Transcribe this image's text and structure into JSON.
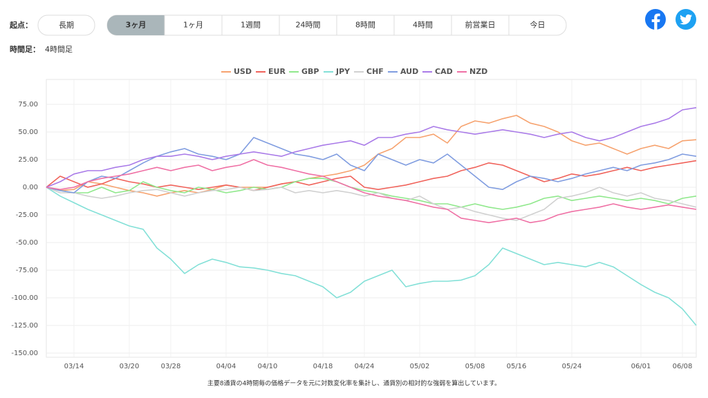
{
  "toolbar": {
    "start_label": "起点：",
    "long_term": "長期",
    "periods": [
      "3ヶ月",
      "1ヶ月",
      "1週間",
      "24時間",
      "8時間",
      "4時間",
      "前営業日",
      "今日"
    ],
    "selected": 0,
    "timeframe_label": "時間足：",
    "timeframe": "4時間足"
  },
  "footer": "主要8通貨の4時間毎の価格データを元に対数変化率を集計し、通貨別の相対的な強弱を算出しています。",
  "chart_data": {
    "type": "line",
    "categories": [
      null,
      null,
      "03/14",
      null,
      null,
      null,
      "03/20",
      null,
      null,
      "03/28",
      null,
      null,
      null,
      "04/04",
      null,
      null,
      "04/10",
      null,
      null,
      null,
      "04/18",
      null,
      null,
      "04/24",
      null,
      null,
      null,
      "05/02",
      null,
      null,
      null,
      "05/08",
      null,
      null,
      "05/16",
      null,
      null,
      null,
      "05/24",
      null,
      null,
      null,
      null,
      "06/01",
      null,
      null,
      "06/08",
      null
    ],
    "series": [
      {
        "name": "USD",
        "color": "#f6a26e",
        "values": [
          0,
          -3,
          -2,
          5,
          3,
          0,
          -3,
          -5,
          -8,
          -5,
          -3,
          -5,
          -2,
          2,
          0,
          0,
          0,
          3,
          5,
          8,
          10,
          12,
          15,
          20,
          30,
          35,
          45,
          45,
          48,
          40,
          55,
          60,
          58,
          62,
          65,
          58,
          55,
          50,
          42,
          38,
          40,
          35,
          30,
          35,
          38,
          35,
          42,
          43
        ]
      },
      {
        "name": "EUR",
        "color": "#f0625a",
        "values": [
          0,
          10,
          5,
          0,
          3,
          8,
          5,
          3,
          0,
          2,
          0,
          -2,
          0,
          2,
          0,
          -3,
          0,
          3,
          5,
          2,
          5,
          8,
          10,
          0,
          -2,
          0,
          2,
          5,
          8,
          10,
          15,
          18,
          22,
          20,
          15,
          10,
          5,
          8,
          12,
          10,
          12,
          15,
          18,
          15,
          18,
          20,
          22,
          24
        ]
      },
      {
        "name": "GBP",
        "color": "#8fe88b",
        "values": [
          0,
          -3,
          -5,
          -5,
          0,
          -5,
          -3,
          5,
          0,
          -3,
          -5,
          0,
          -2,
          -5,
          -3,
          0,
          -2,
          0,
          5,
          8,
          8,
          5,
          0,
          -3,
          -5,
          -8,
          -10,
          -12,
          -15,
          -15,
          -18,
          -15,
          -18,
          -20,
          -18,
          -15,
          -10,
          -8,
          -12,
          -10,
          -8,
          -10,
          -12,
          -10,
          -12,
          -15,
          -10,
          -8
        ]
      },
      {
        "name": "JPY",
        "color": "#82e0d7",
        "values": [
          0,
          -8,
          -14,
          -20,
          -25,
          -30,
          -35,
          -38,
          -55,
          -65,
          -78,
          -70,
          -65,
          -68,
          -72,
          -73,
          -75,
          -78,
          -80,
          -85,
          -90,
          -100,
          -95,
          -85,
          -80,
          -75,
          -90,
          -87,
          -85,
          -85,
          -84,
          -80,
          -70,
          -55,
          -60,
          -65,
          -70,
          -68,
          -70,
          -72,
          -68,
          -72,
          -80,
          -88,
          -95,
          -100,
          -110,
          -125
        ]
      },
      {
        "name": "CHF",
        "color": "#d0d0d0",
        "values": [
          0,
          -5,
          -5,
          -8,
          -10,
          -8,
          -5,
          -3,
          -2,
          -5,
          -8,
          -5,
          -3,
          -2,
          0,
          -3,
          -2,
          0,
          -5,
          -3,
          -5,
          -3,
          -5,
          -8,
          -5,
          -10,
          -12,
          -8,
          -15,
          -20,
          -18,
          -22,
          -25,
          -28,
          -30,
          -25,
          -20,
          -10,
          -8,
          -5,
          0,
          -5,
          -8,
          -5,
          -10,
          -12,
          -15,
          -18
        ]
      },
      {
        "name": "AUD",
        "color": "#7f9ce0",
        "values": [
          0,
          -3,
          -5,
          5,
          10,
          8,
          15,
          22,
          28,
          32,
          35,
          30,
          28,
          25,
          30,
          45,
          40,
          35,
          30,
          28,
          25,
          30,
          20,
          15,
          30,
          25,
          20,
          25,
          22,
          30,
          20,
          10,
          0,
          -2,
          5,
          10,
          8,
          5,
          8,
          12,
          15,
          18,
          15,
          20,
          22,
          25,
          30,
          28
        ]
      },
      {
        "name": "CAD",
        "color": "#a97ae8",
        "values": [
          0,
          5,
          12,
          15,
          15,
          18,
          20,
          25,
          28,
          28,
          30,
          28,
          25,
          28,
          30,
          32,
          30,
          28,
          32,
          35,
          38,
          40,
          42,
          38,
          45,
          45,
          48,
          50,
          55,
          52,
          50,
          48,
          50,
          52,
          50,
          48,
          45,
          48,
          50,
          45,
          42,
          45,
          50,
          55,
          58,
          62,
          70,
          72
        ]
      },
      {
        "name": "NZD",
        "color": "#ef6fa4",
        "values": [
          0,
          -2,
          0,
          5,
          8,
          10,
          12,
          15,
          18,
          15,
          18,
          20,
          15,
          18,
          20,
          25,
          20,
          18,
          15,
          12,
          10,
          5,
          0,
          -5,
          -8,
          -10,
          -12,
          -15,
          -18,
          -20,
          -28,
          -30,
          -32,
          -30,
          -28,
          -32,
          -30,
          -25,
          -22,
          -20,
          -18,
          -15,
          -18,
          -20,
          -18,
          -16,
          -18,
          -20
        ]
      }
    ],
    "ylim": [
      -153.75,
      97.5
    ],
    "yticks": [
      {
        "value": -150,
        "label": "-150.00"
      },
      {
        "value": -125,
        "label": "-125.00"
      },
      {
        "value": -100,
        "label": "-100.00"
      },
      {
        "value": -75,
        "label": "-75.00"
      },
      {
        "value": -50,
        "label": "-50.00"
      },
      {
        "value": -25,
        "label": "-25.00"
      },
      {
        "value": 0,
        "label": "0.00"
      },
      {
        "value": 25,
        "label": "25.00"
      },
      {
        "value": 50,
        "label": "50.00"
      },
      {
        "value": 75,
        "label": "75.00"
      }
    ],
    "grid": true
  }
}
